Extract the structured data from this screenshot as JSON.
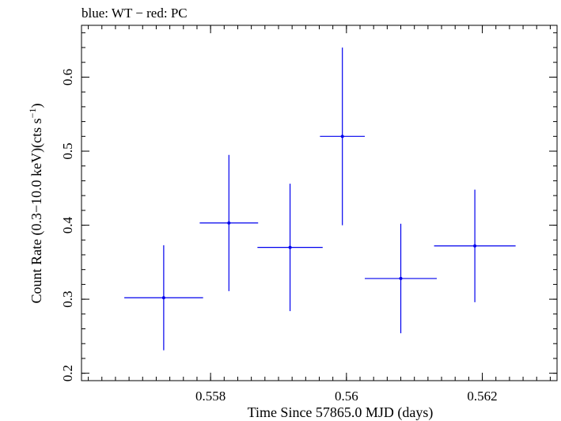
{
  "chart_data": {
    "type": "scatter",
    "title": "blue: WT − red: PC",
    "xlabel": "Time Since 57865.0 MJD (days)",
    "ylabel_parts": {
      "prefix": "Count Rate (0.3−10.0 keV)(cts s",
      "superscript": "−1",
      "suffix": ")"
    },
    "xlim": [
      0.5561,
      0.5631
    ],
    "ylim": [
      0.19,
      0.67
    ],
    "x_ticks": [
      {
        "value": 0.558,
        "label": "0.558"
      },
      {
        "value": 0.56,
        "label": "0.56"
      },
      {
        "value": 0.562,
        "label": "0.562"
      }
    ],
    "y_ticks": [
      {
        "value": 0.2,
        "label": "0.2"
      },
      {
        "value": 0.3,
        "label": "0.3"
      },
      {
        "value": 0.4,
        "label": "0.4"
      },
      {
        "value": 0.5,
        "label": "0.5"
      },
      {
        "value": 0.6,
        "label": "0.6"
      }
    ],
    "x_minor_step": 0.0002,
    "y_minor_step": 0.02,
    "series": [
      {
        "color": "#0000ee",
        "points": [
          {
            "x": 0.55731,
            "xerr_lo": 0.00058,
            "xerr_hi": 0.00058,
            "y": 0.302,
            "yerr_lo": 0.071,
            "yerr_hi": 0.071
          },
          {
            "x": 0.55827,
            "xerr_lo": 0.00043,
            "xerr_hi": 0.00043,
            "y": 0.403,
            "yerr_lo": 0.092,
            "yerr_hi": 0.092
          },
          {
            "x": 0.55917,
            "xerr_lo": 0.00048,
            "xerr_hi": 0.00048,
            "y": 0.37,
            "yerr_lo": 0.086,
            "yerr_hi": 0.086
          },
          {
            "x": 0.55994,
            "xerr_lo": 0.00033,
            "xerr_hi": 0.00033,
            "y": 0.52,
            "yerr_lo": 0.12,
            "yerr_hi": 0.12
          },
          {
            "x": 0.5608,
            "xerr_lo": 0.00053,
            "xerr_hi": 0.00053,
            "y": 0.328,
            "yerr_lo": 0.074,
            "yerr_hi": 0.074
          },
          {
            "x": 0.56189,
            "xerr_lo": 0.0006,
            "xerr_hi": 0.0006,
            "y": 0.372,
            "yerr_lo": 0.076,
            "yerr_hi": 0.076
          }
        ]
      }
    ]
  }
}
